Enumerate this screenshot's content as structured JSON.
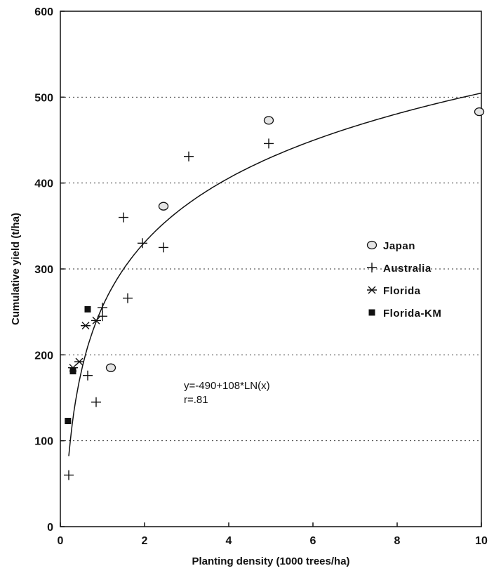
{
  "chart_data": {
    "type": "scatter",
    "title": "",
    "xlabel": "Planting density (1000 trees/ha)",
    "ylabel": "Cumulative yield (t/ha)",
    "xlim": [
      0,
      10
    ],
    "ylim": [
      0,
      600
    ],
    "x_ticks": [
      "0",
      "2",
      "4",
      "6",
      "8",
      "10"
    ],
    "y_ticks": [
      "0",
      "100",
      "200",
      "300",
      "400",
      "500",
      "600"
    ],
    "grid": "horizontal dotted",
    "legend_position": "right",
    "series": [
      {
        "name": "Japan",
        "marker": "circle",
        "points": [
          [
            1.2,
            185
          ],
          [
            2.45,
            373
          ],
          [
            4.95,
            473
          ],
          [
            9.95,
            483
          ]
        ]
      },
      {
        "name": "Australia",
        "marker": "plus",
        "points": [
          [
            0.2,
            60
          ],
          [
            0.65,
            176
          ],
          [
            0.85,
            145
          ],
          [
            1.0,
            245
          ],
          [
            1.0,
            255
          ],
          [
            1.5,
            360
          ],
          [
            1.6,
            266
          ],
          [
            1.95,
            330
          ],
          [
            2.45,
            325
          ],
          [
            3.05,
            431
          ],
          [
            4.95,
            446
          ]
        ]
      },
      {
        "name": "Florida",
        "marker": "asterisk",
        "points": [
          [
            0.3,
            185
          ],
          [
            0.45,
            192
          ],
          [
            0.6,
            234
          ],
          [
            0.85,
            240
          ]
        ]
      },
      {
        "name": "Florida-KM",
        "marker": "square",
        "points": [
          [
            0.18,
            123
          ],
          [
            0.3,
            181
          ],
          [
            0.65,
            253
          ]
        ]
      }
    ],
    "fit": {
      "equation": "y=-490+108*LN(x)",
      "r": "r=.81"
    }
  }
}
